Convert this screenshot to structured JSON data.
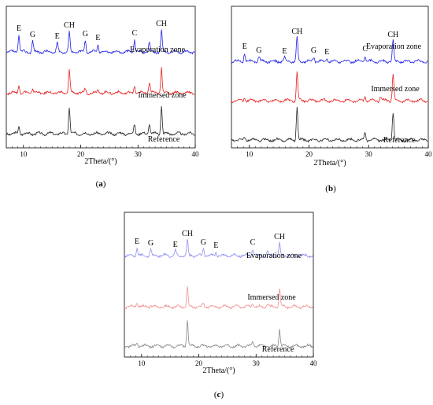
{
  "panels": [
    {
      "caption": "(a)",
      "xlabel": "2Theta/(°)",
      "xlim": [
        7,
        40
      ],
      "xticks": [
        10,
        20,
        30,
        40
      ],
      "peak_labels": [
        {
          "text": "E",
          "x": 9.2,
          "series": "Evaporation zone"
        },
        {
          "text": "G",
          "x": 11.6,
          "series": "Evaporation zone"
        },
        {
          "text": "E",
          "x": 15.9,
          "series": "Evaporation zone"
        },
        {
          "text": "CH",
          "x": 18.0,
          "series": "Evaporation zone"
        },
        {
          "text": "G",
          "x": 20.8,
          "series": "Evaporation zone"
        },
        {
          "text": "E",
          "x": 23.0,
          "series": "Evaporation zone"
        },
        {
          "text": "C",
          "x": 29.4,
          "series": "Evaporation zone"
        },
        {
          "text": "CH",
          "x": 34.1,
          "series": "Evaporation zone"
        }
      ],
      "series_labels": [
        "Evaporation zone",
        "Immersed zone",
        "Reference"
      ],
      "colors": {
        "Evaporation zone": "#1f1fe6",
        "Immersed zone": "#e61f1f",
        "Reference": "#222222"
      }
    },
    {
      "caption": "(b)",
      "xlabel": "2Theta/(°)",
      "xlim": [
        7,
        40
      ],
      "xticks": [
        10,
        20,
        30,
        40
      ],
      "peak_labels": [
        {
          "text": "E",
          "x": 9.2,
          "series": "Evaporation zone"
        },
        {
          "text": "G",
          "x": 11.6,
          "series": "Evaporation zone"
        },
        {
          "text": "E",
          "x": 15.9,
          "series": "Evaporation zone"
        },
        {
          "text": "CH",
          "x": 18.0,
          "series": "Evaporation zone"
        },
        {
          "text": "G",
          "x": 20.8,
          "series": "Evaporation zone"
        },
        {
          "text": "E",
          "x": 23.0,
          "series": "Evaporation zone"
        },
        {
          "text": "C",
          "x": 29.4,
          "series": "Evaporation zone"
        },
        {
          "text": "CH",
          "x": 34.1,
          "series": "Evaporation zone"
        }
      ],
      "series_labels": [
        "Evaporation zone",
        "Immersed zone",
        "Reference"
      ],
      "colors": {
        "Evaporation zone": "#1f1fe6",
        "Immersed zone": "#e61f1f",
        "Reference": "#222222"
      }
    },
    {
      "caption": "(c)",
      "xlabel": "2Theta/(°)",
      "xlim": [
        7,
        40
      ],
      "xticks": [
        10,
        20,
        30,
        40
      ],
      "peak_labels": [
        {
          "text": "E",
          "x": 9.2,
          "series": "Evaporation zone"
        },
        {
          "text": "G",
          "x": 11.6,
          "series": "Evaporation zone"
        },
        {
          "text": "E",
          "x": 15.9,
          "series": "Evaporation zone"
        },
        {
          "text": "CH",
          "x": 18.0,
          "series": "Evaporation zone"
        },
        {
          "text": "G",
          "x": 20.8,
          "series": "Evaporation zone"
        },
        {
          "text": "E",
          "x": 23.0,
          "series": "Evaporation zone"
        },
        {
          "text": "C",
          "x": 29.4,
          "series": "Evaporation zone"
        },
        {
          "text": "CH",
          "x": 34.1,
          "series": "Evaporation zone"
        }
      ],
      "series_labels": [
        "Evaporation zone",
        "Immersed zone",
        "Reference"
      ],
      "colors": {
        "Evaporation zone": "#8f8ff0",
        "Immersed zone": "#f08f8f",
        "Reference": "#888888"
      }
    }
  ],
  "chart_data": [
    {
      "type": "line",
      "title": "(a)",
      "xlabel": "2Theta/(°)",
      "ylabel": "",
      "xlim": [
        7,
        40
      ],
      "series": [
        {
          "name": "Evaporation zone",
          "peaks": [
            [
              9.2,
              2.2
            ],
            [
              11.6,
              1.4
            ],
            [
              15.9,
              1.2
            ],
            [
              18.0,
              2.6
            ],
            [
              20.8,
              1.5
            ],
            [
              23.0,
              1.0
            ],
            [
              29.4,
              1.6
            ],
            [
              32.0,
              1.2
            ],
            [
              34.1,
              2.8
            ]
          ]
        },
        {
          "name": "Immersed zone",
          "peaks": [
            [
              9.2,
              1.0
            ],
            [
              11.6,
              0.6
            ],
            [
              18.0,
              3.0
            ],
            [
              20.8,
              0.5
            ],
            [
              23.0,
              0.5
            ],
            [
              29.4,
              0.9
            ],
            [
              32.0,
              1.4
            ],
            [
              34.1,
              3.2
            ]
          ]
        },
        {
          "name": "Reference",
          "peaks": [
            [
              9.2,
              0.9
            ],
            [
              18.0,
              3.4
            ],
            [
              29.4,
              1.2
            ],
            [
              32.0,
              1.4
            ],
            [
              34.1,
              3.6
            ]
          ]
        }
      ]
    },
    {
      "type": "line",
      "title": "(b)",
      "xlabel": "2Theta/(°)",
      "ylabel": "",
      "xlim": [
        7,
        40
      ],
      "series": [
        {
          "name": "Evaporation zone",
          "peaks": [
            [
              9.2,
              1.1
            ],
            [
              11.6,
              0.6
            ],
            [
              15.9,
              0.5
            ],
            [
              18.0,
              3.0
            ],
            [
              20.8,
              0.6
            ],
            [
              23.0,
              0.4
            ],
            [
              29.4,
              0.8
            ],
            [
              34.1,
              2.6
            ]
          ]
        },
        {
          "name": "Immersed zone",
          "peaks": [
            [
              9.2,
              0.5
            ],
            [
              18.0,
              3.6
            ],
            [
              29.4,
              0.6
            ],
            [
              32.0,
              0.5
            ],
            [
              34.1,
              3.4
            ]
          ]
        },
        {
          "name": "Reference",
          "peaks": [
            [
              9.2,
              0.4
            ],
            [
              18.0,
              4.2
            ],
            [
              29.4,
              1.0
            ],
            [
              34.1,
              3.6
            ]
          ]
        }
      ]
    },
    {
      "type": "line",
      "title": "(c)",
      "xlabel": "2Theta/(°)",
      "ylabel": "",
      "xlim": [
        7,
        40
      ],
      "series": [
        {
          "name": "Evaporation zone",
          "peaks": [
            [
              9.2,
              1.0
            ],
            [
              11.6,
              0.8
            ],
            [
              15.9,
              0.6
            ],
            [
              18.0,
              2.0
            ],
            [
              20.8,
              0.9
            ],
            [
              23.0,
              0.5
            ],
            [
              29.4,
              0.9
            ],
            [
              32.0,
              0.6
            ],
            [
              34.1,
              1.6
            ]
          ]
        },
        {
          "name": "Immersed zone",
          "peaks": [
            [
              9.2,
              0.5
            ],
            [
              11.6,
              0.3
            ],
            [
              18.0,
              2.6
            ],
            [
              20.8,
              0.4
            ],
            [
              29.4,
              0.4
            ],
            [
              32.0,
              0.4
            ],
            [
              34.1,
              2.4
            ]
          ]
        },
        {
          "name": "Reference",
          "peaks": [
            [
              9.2,
              0.3
            ],
            [
              18.0,
              3.4
            ],
            [
              29.4,
              0.6
            ],
            [
              34.1,
              2.2
            ]
          ]
        }
      ]
    }
  ]
}
